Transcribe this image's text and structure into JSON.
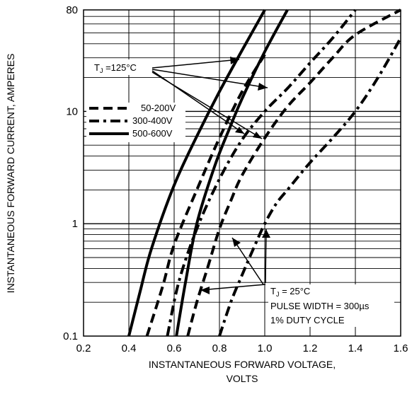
{
  "chart_data": {
    "type": "line",
    "title": "",
    "xlabel_line1": "INSTANTANEOUS FORWARD VOLTAGE,",
    "xlabel_line2": "VOLTS",
    "ylabel": "INSTANTANEOUS FORWARD CURRENT, AMPERES",
    "x_ticks": [
      "0.2",
      "0.4",
      "0.6",
      "0.8",
      "1.0",
      "1.2",
      "1.4",
      "1.6"
    ],
    "y_ticks": [
      "0.1",
      "1",
      "10",
      "80"
    ],
    "xlim": [
      0.2,
      1.6
    ],
    "ylim": [
      0.1,
      80
    ],
    "yscale": "log",
    "grid": true,
    "legend_position": "middle-left",
    "legend": [
      {
        "label": "50-200V",
        "style": "dashed"
      },
      {
        "label": "300-400V",
        "style": "dash-dot"
      },
      {
        "label": "500-600V",
        "style": "solid"
      }
    ],
    "annotations": {
      "tj_hot_label": "T",
      "tj_hot_sub": "J",
      "tj_hot_rest": " =125°C",
      "tj_cold_label": "T",
      "tj_cold_sub": "J",
      "tj_cold_rest": " = 25°C",
      "pulse_label": "PULSE WIDTH = 300µs",
      "duty_label": "1% DUTY CYCLE"
    },
    "series": [
      {
        "legend": "500-600V",
        "temperature": "125°C",
        "style": "solid",
        "x": [
          0.4,
          0.45,
          0.5,
          0.6,
          0.7,
          0.8,
          0.9,
          1.0
        ],
        "y": [
          0.1,
          0.25,
          0.6,
          2.2,
          6,
          15,
          35,
          80
        ]
      },
      {
        "legend": "500-600V",
        "temperature": "25°C",
        "style": "solid",
        "x": [
          0.61,
          0.65,
          0.7,
          0.78,
          0.85,
          0.9,
          1.0,
          1.1
        ],
        "y": [
          0.1,
          0.3,
          1.0,
          3.3,
          7.5,
          13,
          34,
          80
        ]
      },
      {
        "legend": "50-200V",
        "temperature": "125°C",
        "style": "dashed",
        "x": [
          0.48,
          0.55,
          0.6,
          0.7,
          0.8,
          0.9,
          1.0
        ],
        "y": [
          0.1,
          0.28,
          0.65,
          2.0,
          5.8,
          15,
          32
        ]
      },
      {
        "legend": "50-200V",
        "temperature": "25°C",
        "style": "dashed",
        "x": [
          0.66,
          0.7,
          0.75,
          0.8,
          0.85,
          0.9,
          1.0,
          1.1,
          1.2,
          1.3,
          1.4,
          1.6
        ],
        "y": [
          0.1,
          0.2,
          0.42,
          0.9,
          1.6,
          2.7,
          5.8,
          11,
          18,
          30,
          48,
          80
        ]
      },
      {
        "legend": "300-400V",
        "temperature": "125°C",
        "style": "dash-dot",
        "x": [
          0.57,
          0.62,
          0.7,
          0.8,
          0.9,
          1.0,
          1.1,
          1.2,
          1.3,
          1.4
        ],
        "y": [
          0.1,
          0.3,
          0.9,
          2.5,
          5.6,
          10,
          16,
          27,
          45,
          80
        ]
      },
      {
        "legend": "300-400V",
        "temperature": "25°C",
        "style": "dash-dot",
        "x": [
          0.8,
          0.85,
          0.9,
          0.95,
          1.0,
          1.05,
          1.1,
          1.2,
          1.3,
          1.4,
          1.5,
          1.6
        ],
        "y": [
          0.1,
          0.2,
          0.35,
          0.6,
          1.0,
          1.5,
          2.0,
          3.5,
          5.8,
          10,
          20,
          45
        ]
      }
    ]
  }
}
